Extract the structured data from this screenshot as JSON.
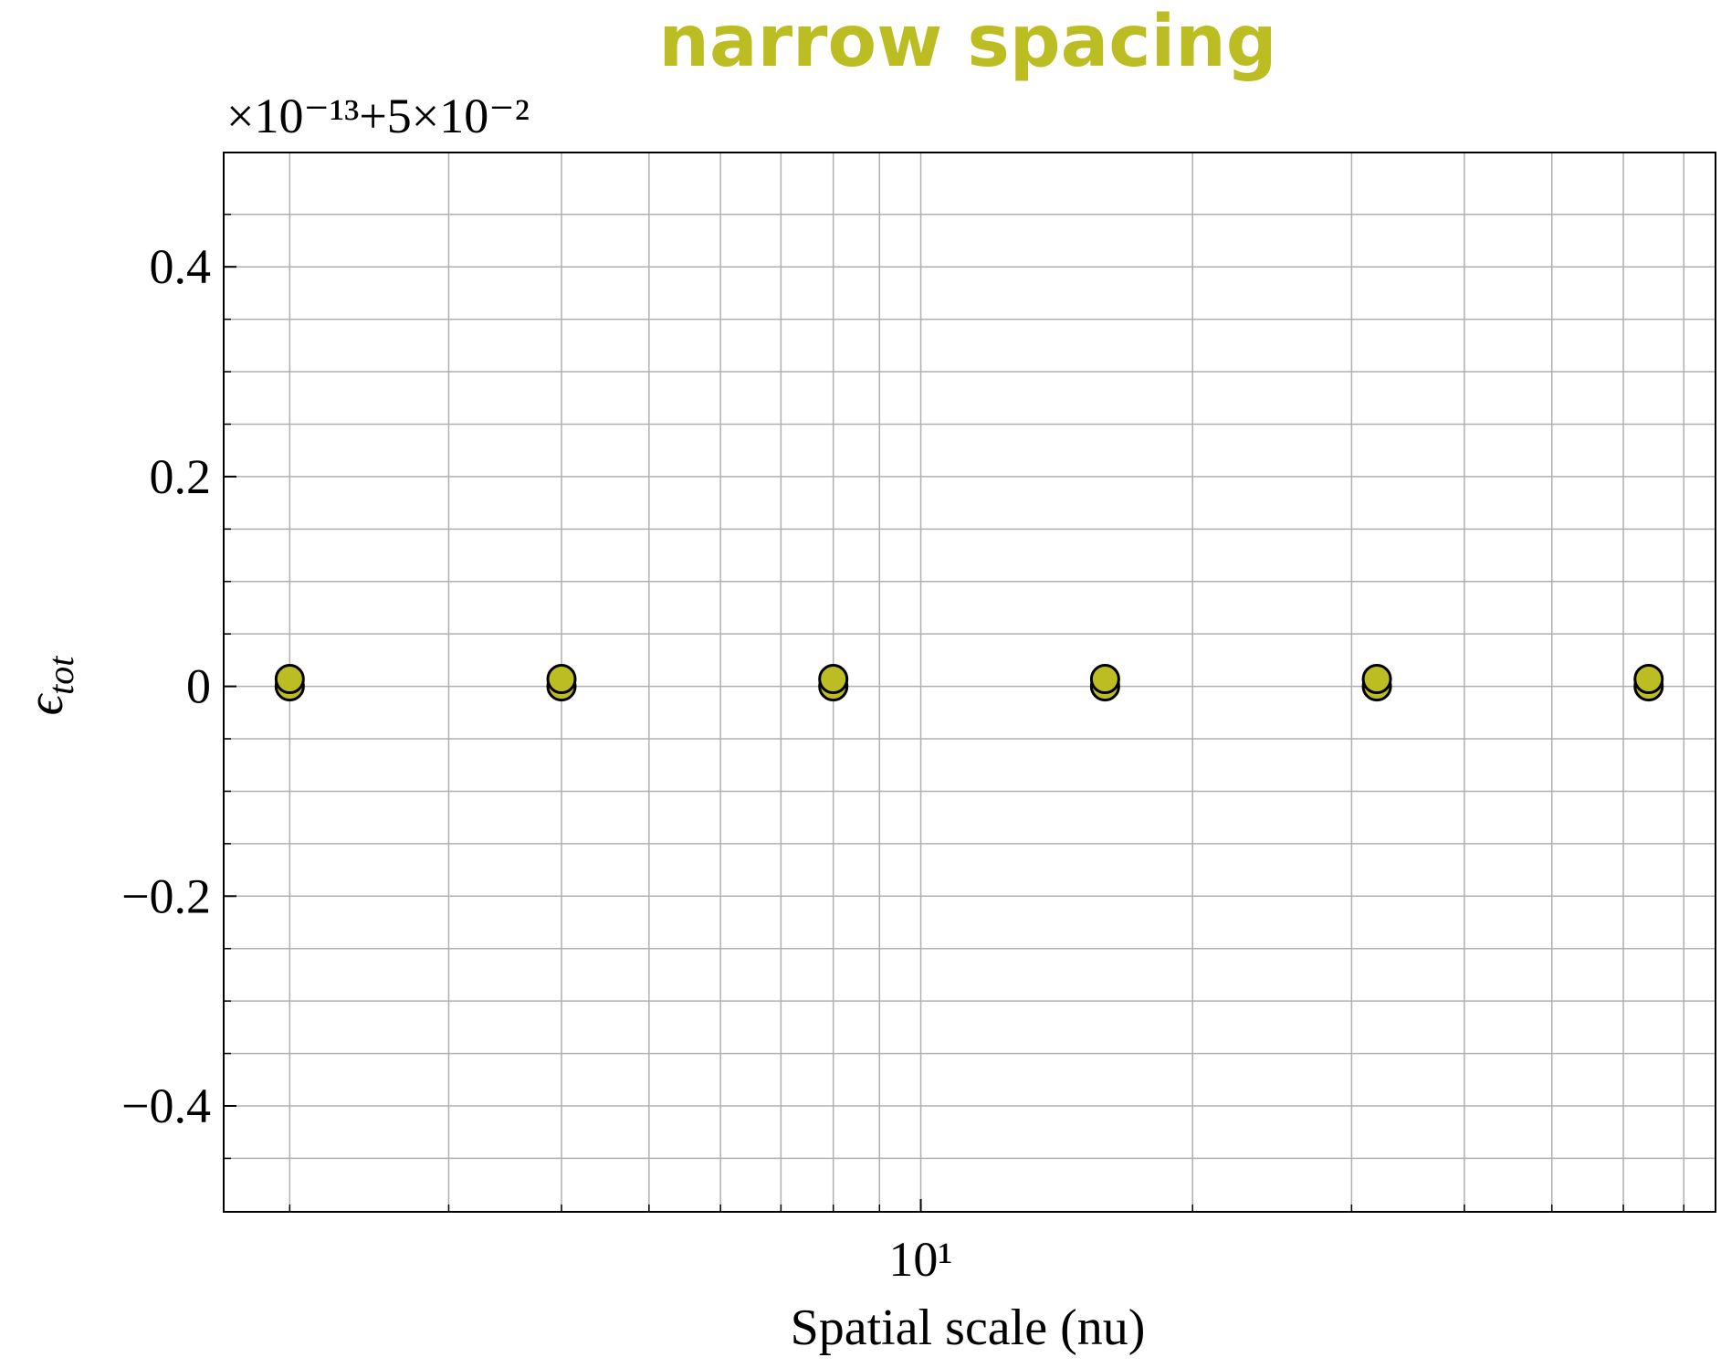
{
  "chart_data": {
    "type": "scatter",
    "title": "narrow spacing",
    "offset_text": "×10⁻¹³+5×10⁻²",
    "xlabel": "Spatial scale (nu)",
    "ylabel": {
      "symbol": "ϵ",
      "subscript": "tot"
    },
    "x": [
      2,
      2,
      4,
      4,
      8,
      8,
      16,
      16,
      32,
      32,
      64,
      64
    ],
    "y": [
      0,
      0.007,
      0,
      0.007,
      0,
      0.007,
      0,
      0.007,
      0,
      0.007,
      0,
      0.007
    ],
    "color": "#bcbd22",
    "edgecolor": "#000000",
    "xscale": "log",
    "xlim": [
      1.69,
      75.9
    ],
    "xticks": [
      {
        "value": 10,
        "label": "10¹"
      }
    ],
    "xminorticks": [
      2,
      3,
      4,
      5,
      6,
      7,
      8,
      9,
      20,
      30,
      40,
      50,
      60,
      70
    ],
    "ylim": [
      -0.501,
      0.509
    ],
    "yticks": [
      -0.4,
      -0.2,
      0.0,
      0.2,
      0.4
    ],
    "yminorticks": [
      -0.45,
      -0.35,
      -0.3,
      -0.25,
      -0.15,
      -0.1,
      -0.05,
      0.05,
      0.1,
      0.15,
      0.25,
      0.3,
      0.35,
      0.45
    ],
    "grid": true
  }
}
